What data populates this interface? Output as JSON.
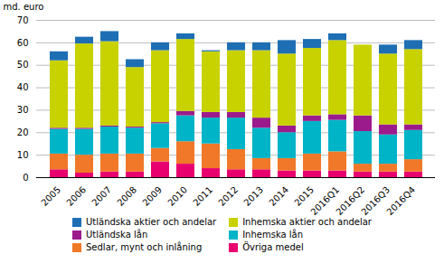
{
  "chart_data": {
    "type": "bar",
    "stacked": true,
    "categories": [
      "2005",
      "2006",
      "2007",
      "2008",
      "2009",
      "2010",
      "2011",
      "2012",
      "2013",
      "2014",
      "2015",
      "2016Q1",
      "2016Q2",
      "2016Q3",
      "2016Q4"
    ],
    "series": [
      {
        "name": "Övriga medel",
        "color": "#e8006f",
        "values": [
          3.5,
          2.0,
          2.5,
          2.5,
          7.0,
          6.0,
          4.0,
          3.5,
          3.5,
          3.0,
          3.0,
          3.0,
          2.5,
          2.5,
          2.5
        ]
      },
      {
        "name": "Sedlar, mynt och inlåning",
        "color": "#f07828",
        "values": [
          7.0,
          8.0,
          8.0,
          8.0,
          6.0,
          10.0,
          11.0,
          9.0,
          5.0,
          5.5,
          7.5,
          8.5,
          3.5,
          3.5,
          5.5
        ]
      },
      {
        "name": "Inhemska lån",
        "color": "#00b4c8",
        "values": [
          11.0,
          11.5,
          12.0,
          11.5,
          11.0,
          11.5,
          11.5,
          14.0,
          13.5,
          11.5,
          14.5,
          14.0,
          14.5,
          13.0,
          13.0
        ]
      },
      {
        "name": "Utländska lån",
        "color": "#9b1b8c",
        "values": [
          0.5,
          0.5,
          0.5,
          0.5,
          0.5,
          2.0,
          2.5,
          2.5,
          4.5,
          3.0,
          2.5,
          2.5,
          7.0,
          4.5,
          2.5
        ]
      },
      {
        "name": "Inhemska aktier och andelar",
        "color": "#c8d200",
        "values": [
          30.0,
          37.5,
          37.5,
          26.5,
          32.0,
          32.0,
          27.0,
          27.5,
          30.0,
          32.0,
          30.0,
          33.0,
          31.5,
          31.5,
          33.5
        ]
      },
      {
        "name": "Utländska aktier och andelar",
        "color": "#1e6eb4",
        "values": [
          4.0,
          3.0,
          4.5,
          3.5,
          3.5,
          2.5,
          0.5,
          3.5,
          3.5,
          6.0,
          4.0,
          3.0,
          0.0,
          4.0,
          4.0
        ]
      }
    ],
    "ylabel": "md. euro",
    "ylim": [
      0,
      70
    ],
    "yticks": [
      0,
      10,
      20,
      30,
      40,
      50,
      60,
      70
    ],
    "grid": true,
    "legend": "bottom"
  }
}
